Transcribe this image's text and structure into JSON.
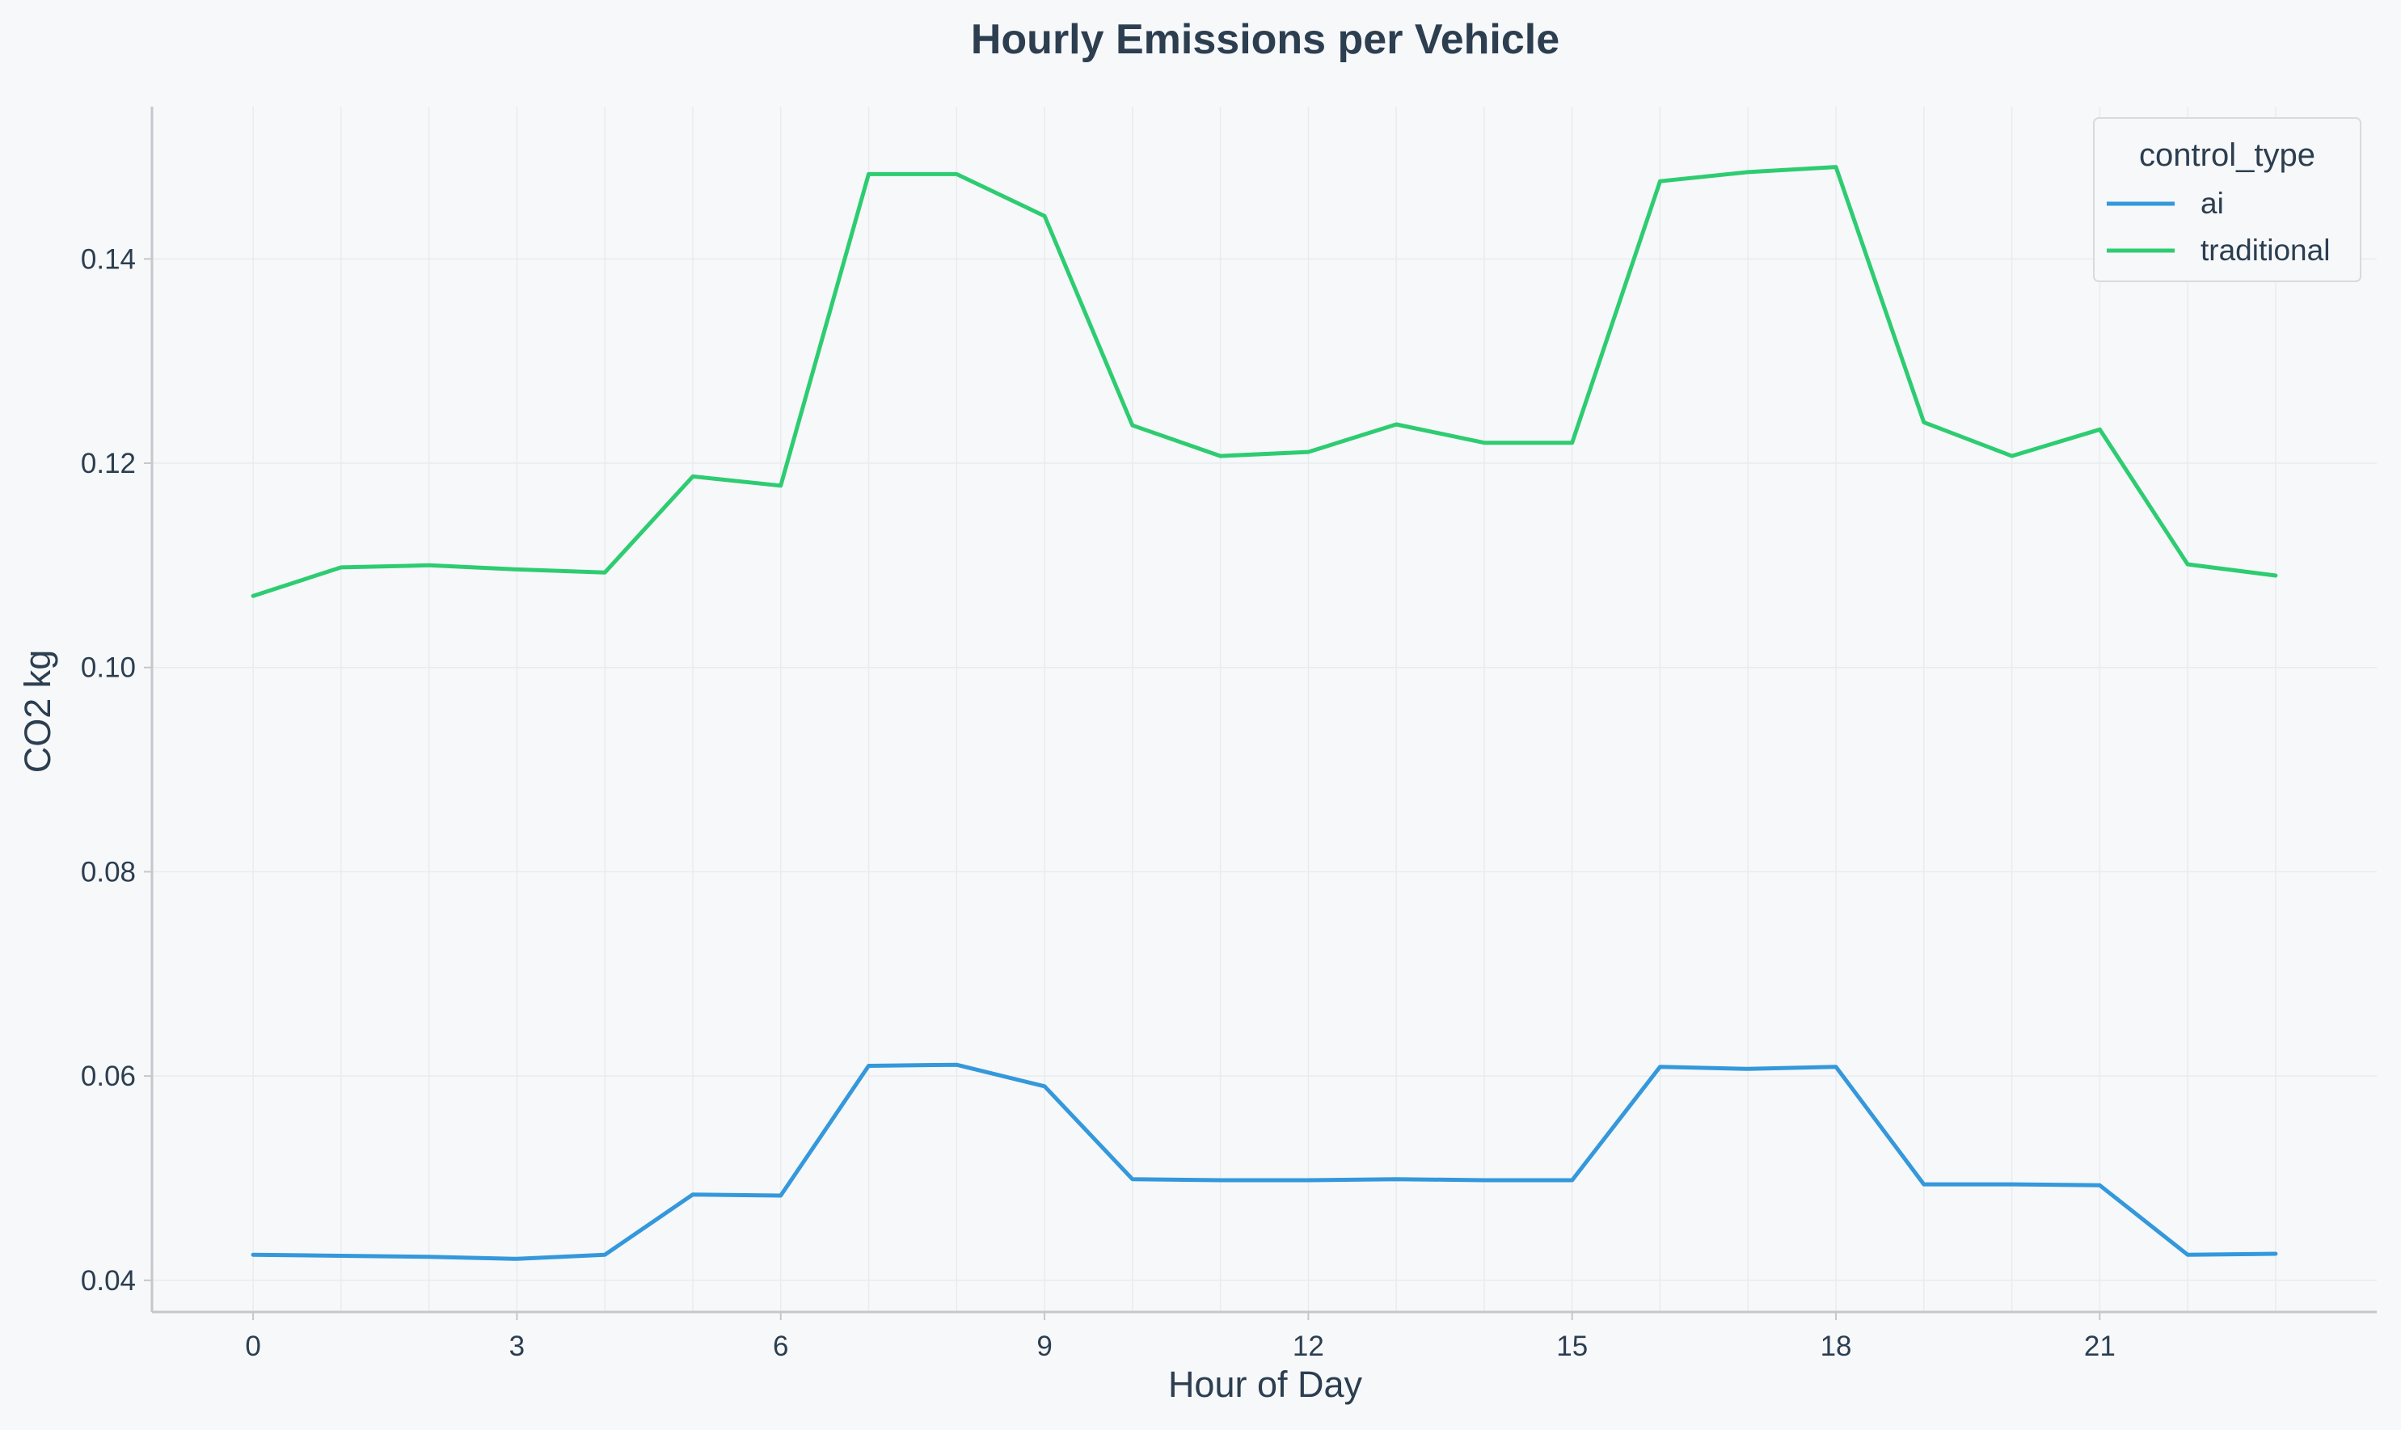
{
  "chart_data": {
    "type": "line",
    "title": "Hourly Emissions per Vehicle",
    "xlabel": "Hour of Day",
    "ylabel": "CO2 kg",
    "x": [
      0,
      1,
      2,
      3,
      4,
      5,
      6,
      7,
      8,
      9,
      10,
      11,
      12,
      13,
      14,
      15,
      16,
      17,
      18,
      19,
      20,
      21,
      22,
      23
    ],
    "xlim": [
      -1.15,
      24.15
    ],
    "ylim": [
      0.0369,
      0.1549
    ],
    "xticks": [
      0,
      3,
      6,
      9,
      12,
      15,
      18,
      21
    ],
    "yticks": [
      0.04,
      0.06,
      0.08,
      0.1,
      0.12,
      0.14
    ],
    "ytick_labels": [
      "0.04",
      "0.06",
      "0.08",
      "0.10",
      "0.12",
      "0.14"
    ],
    "grid": true,
    "legend": {
      "title": "control_type",
      "position": "top-right"
    },
    "series": [
      {
        "name": "ai",
        "color": "#3498db",
        "values": [
          0.0425,
          0.0424,
          0.0423,
          0.0421,
          0.0425,
          0.0484,
          0.0483,
          0.061,
          0.0611,
          0.059,
          0.0499,
          0.0498,
          0.0498,
          0.0499,
          0.0498,
          0.0498,
          0.0609,
          0.0607,
          0.0609,
          0.0494,
          0.0494,
          0.0493,
          0.0425,
          0.0426
        ]
      },
      {
        "name": "traditional",
        "color": "#2ecc71",
        "values": [
          0.107,
          0.1098,
          0.11,
          0.1096,
          0.1093,
          0.1187,
          0.1178,
          0.1483,
          0.1483,
          0.1442,
          0.1237,
          0.1207,
          0.1211,
          0.1238,
          0.122,
          0.122,
          0.1476,
          0.1485,
          0.149,
          0.124,
          0.1207,
          0.1233,
          0.1101,
          0.109
        ]
      }
    ]
  }
}
